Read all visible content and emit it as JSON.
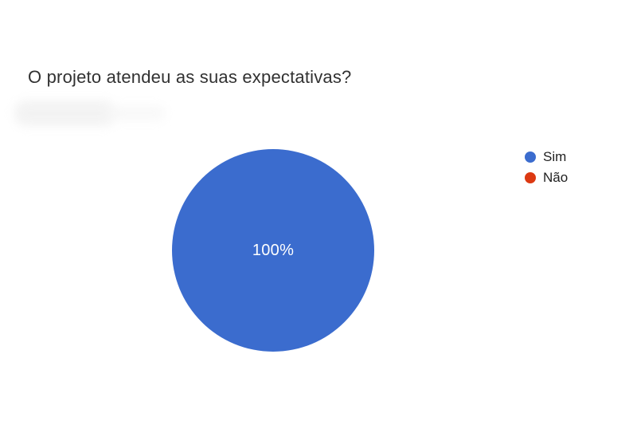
{
  "page": {
    "background": "#ffffff"
  },
  "chart_data": {
    "type": "pie",
    "title": "O projeto atendeu as suas expectativas?",
    "labels": [
      "Sim",
      "Não"
    ],
    "values": [
      100,
      0
    ],
    "colors": [
      "#3b6cce",
      "#dc3912"
    ],
    "slice_label": "100%",
    "legend_position": "right",
    "legend": [
      {
        "label": "Sim",
        "color": "#3b6cce"
      },
      {
        "label": "Não",
        "color": "#dc3912"
      }
    ]
  }
}
